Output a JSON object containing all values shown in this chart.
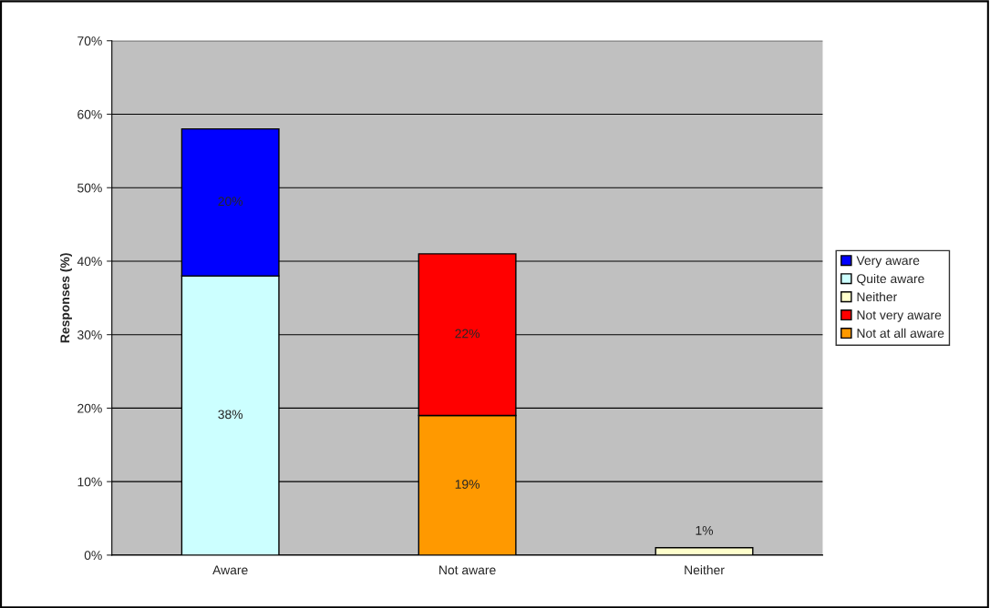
{
  "chart_data": {
    "type": "bar",
    "stacked": true,
    "ylabel": "Responses (%)",
    "categories": [
      "Aware",
      "Not aware",
      "Neither"
    ],
    "series": [
      {
        "name": "Not at all aware",
        "color": "#ff9900",
        "values": [
          null,
          19,
          null
        ],
        "value_labels": [
          null,
          "19%",
          null
        ]
      },
      {
        "name": "Not very aware",
        "color": "#ff0000",
        "values": [
          null,
          22,
          null
        ],
        "value_labels": [
          null,
          "22%",
          null
        ]
      },
      {
        "name": "Neither",
        "color": "#ffffcc",
        "values": [
          null,
          null,
          1
        ],
        "value_labels": [
          null,
          null,
          "1%"
        ]
      },
      {
        "name": "Quite aware",
        "color": "#ccffff",
        "values": [
          38,
          null,
          null
        ],
        "value_labels": [
          "38%",
          null,
          null
        ]
      },
      {
        "name": "Very aware",
        "color": "#0000ff",
        "values": [
          20,
          null,
          null
        ],
        "value_labels": [
          "20%",
          null,
          null
        ]
      }
    ],
    "ylim": [
      0,
      70
    ],
    "yticks": [
      {
        "value": 0,
        "label": "0%"
      },
      {
        "value": 10,
        "label": "10%"
      },
      {
        "value": 20,
        "label": "20%"
      },
      {
        "value": 30,
        "label": "30%"
      },
      {
        "value": 40,
        "label": "40%"
      },
      {
        "value": 50,
        "label": "50%"
      },
      {
        "value": 60,
        "label": "60%"
      },
      {
        "value": 70,
        "label": "70%"
      }
    ],
    "grid": "y",
    "legend": "right"
  }
}
